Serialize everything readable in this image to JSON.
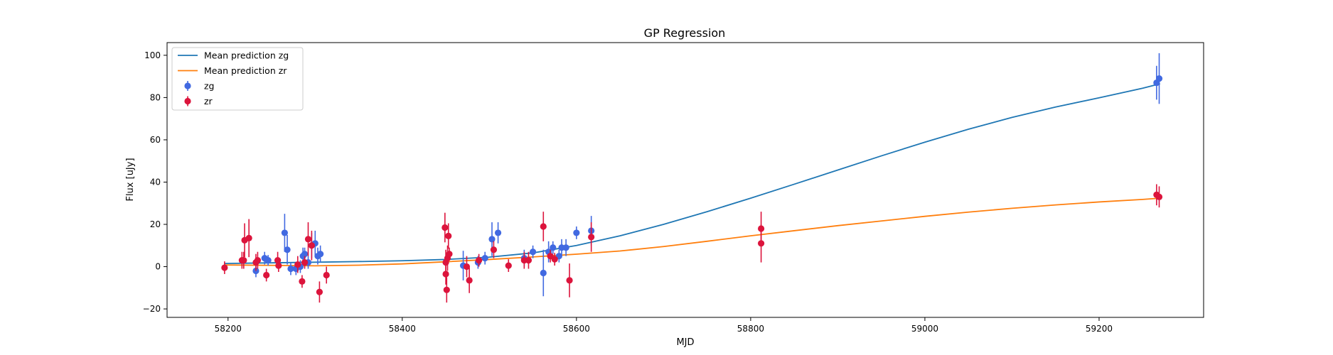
{
  "chart_data": {
    "type": "scatter",
    "title": "GP Regression",
    "xlabel": "MJD",
    "ylabel": "Flux [uJy]",
    "xlim": [
      58130,
      59320
    ],
    "ylim": [
      -24,
      106
    ],
    "xticks": [
      58200,
      58400,
      58600,
      58800,
      59000,
      59200
    ],
    "yticks": [
      -20,
      0,
      20,
      40,
      60,
      80,
      100
    ],
    "grid": false,
    "legend_position": "top-left",
    "colors": {
      "mean_zg": "#1f77b4",
      "mean_zr": "#ff7f0e",
      "zg": "#4169e1",
      "zr": "#dc143c"
    },
    "lines": [
      {
        "name": "Mean prediction zg",
        "color": "#1f77b4",
        "x": [
          58196,
          58250,
          58300,
          58350,
          58400,
          58450,
          58500,
          58550,
          58600,
          58650,
          58700,
          58750,
          58800,
          58850,
          58900,
          58950,
          59000,
          59050,
          59100,
          59150,
          59200,
          59250,
          59270
        ],
        "y": [
          1.5,
          1.8,
          2.1,
          2.4,
          2.8,
          3.4,
          4.5,
          6.5,
          10.0,
          14.6,
          20.0,
          26.0,
          32.4,
          39.0,
          45.7,
          52.4,
          58.9,
          65.0,
          70.6,
          75.5,
          79.9,
          84.4,
          86.5
        ]
      },
      {
        "name": "Mean prediction zr",
        "color": "#ff7f0e",
        "x": [
          58196,
          58250,
          58300,
          58350,
          58400,
          58450,
          58500,
          58550,
          58600,
          58650,
          58700,
          58750,
          58800,
          58850,
          58900,
          58950,
          59000,
          59050,
          59100,
          59150,
          59200,
          59250,
          59270
        ],
        "y": [
          0.8,
          0.6,
          0.4,
          0.7,
          1.3,
          2.3,
          3.4,
          4.6,
          5.9,
          7.4,
          9.5,
          12.0,
          14.6,
          17.0,
          19.4,
          21.6,
          23.8,
          25.8,
          27.6,
          29.2,
          30.6,
          31.8,
          32.4
        ]
      }
    ],
    "series": [
      {
        "name": "zg",
        "color": "#4169e1",
        "points": [
          [
            58232,
            -2.0,
            3
          ],
          [
            58242,
            4,
            3
          ],
          [
            58246,
            3,
            2.5
          ],
          [
            58265,
            16,
            9
          ],
          [
            58268,
            8,
            7
          ],
          [
            58272,
            -1,
            3
          ],
          [
            58278,
            -1,
            3
          ],
          [
            58283,
            0,
            3
          ],
          [
            58286,
            5,
            4
          ],
          [
            58288,
            6,
            3
          ],
          [
            58292,
            2,
            3
          ],
          [
            58296,
            10,
            6
          ],
          [
            58300,
            11,
            6
          ],
          [
            58303,
            5,
            4
          ],
          [
            58306,
            6,
            4
          ],
          [
            58470,
            0.5,
            7
          ],
          [
            58487,
            2,
            3
          ],
          [
            58495,
            4,
            3
          ],
          [
            58503,
            13,
            8
          ],
          [
            58510,
            16,
            5
          ],
          [
            58540,
            4,
            4
          ],
          [
            58550,
            7,
            3
          ],
          [
            58562,
            -3,
            11
          ],
          [
            58568,
            7,
            5
          ],
          [
            58573,
            9,
            3
          ],
          [
            58580,
            5,
            3
          ],
          [
            58583,
            9,
            4
          ],
          [
            58588,
            9,
            4
          ],
          [
            58600,
            16,
            3
          ],
          [
            58617,
            17,
            7
          ],
          [
            59266,
            87,
            8
          ],
          [
            59269,
            89,
            12
          ]
        ]
      },
      {
        "name": "zr",
        "color": "#dc143c",
        "points": [
          [
            58196,
            -0.5,
            3
          ],
          [
            58216,
            3,
            4
          ],
          [
            58218,
            3,
            4
          ],
          [
            58219,
            12.5,
            8
          ],
          [
            58224,
            13.5,
            9
          ],
          [
            58232,
            2,
            4
          ],
          [
            58234,
            3,
            4
          ],
          [
            58244,
            -4,
            3
          ],
          [
            58257,
            3,
            4
          ],
          [
            58258,
            0.5,
            3
          ],
          [
            58280,
            1,
            4
          ],
          [
            58285,
            -7,
            3
          ],
          [
            58288,
            2,
            3
          ],
          [
            58292,
            13,
            8
          ],
          [
            58296,
            10,
            7
          ],
          [
            58305,
            -12,
            5
          ],
          [
            58313,
            -4,
            4
          ],
          [
            58449,
            18.5,
            7
          ],
          [
            58450,
            2,
            6
          ],
          [
            58450,
            -3.5,
            5
          ],
          [
            58451,
            -11,
            6
          ],
          [
            58452,
            4,
            6
          ],
          [
            58453,
            14.5,
            6
          ],
          [
            58454,
            6,
            3
          ],
          [
            58474,
            0,
            5
          ],
          [
            58477,
            -6.5,
            6
          ],
          [
            58488,
            3,
            3
          ],
          [
            58505,
            8,
            4
          ],
          [
            58522,
            0.5,
            3
          ],
          [
            58540,
            3,
            4
          ],
          [
            58545,
            3,
            4
          ],
          [
            58562,
            19,
            7
          ],
          [
            58570,
            5,
            3
          ],
          [
            58575,
            3.5,
            3
          ],
          [
            58592,
            -6.5,
            8
          ],
          [
            58617,
            14,
            7
          ],
          [
            58812,
            18,
            8
          ],
          [
            58812,
            11,
            9
          ],
          [
            59266,
            34,
            5
          ],
          [
            59269,
            33,
            5
          ]
        ]
      }
    ],
    "legend": [
      {
        "label": "Mean prediction zg",
        "kind": "line",
        "color": "#1f77b4"
      },
      {
        "label": "Mean prediction zr",
        "kind": "line",
        "color": "#ff7f0e"
      },
      {
        "label": "zg",
        "kind": "errorbar",
        "color": "#4169e1"
      },
      {
        "label": "zr",
        "kind": "errorbar",
        "color": "#dc143c"
      }
    ]
  }
}
